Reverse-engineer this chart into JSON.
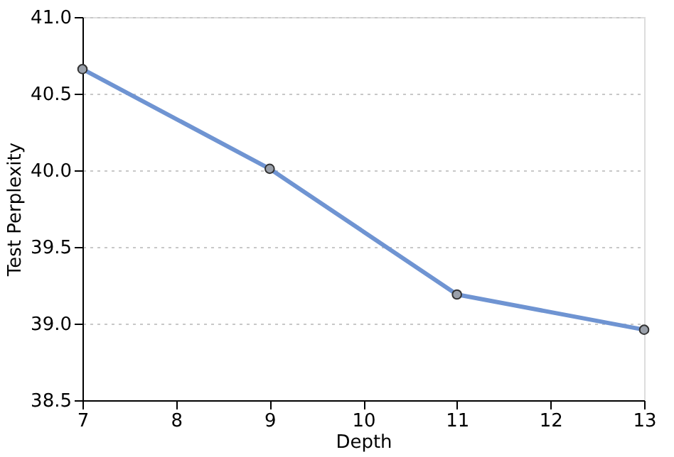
{
  "chart_data": {
    "type": "line",
    "xlabel": "Depth",
    "ylabel": "Test Perplexity",
    "x": [
      7,
      9,
      11,
      13
    ],
    "series": [
      {
        "color": "#6f94d2",
        "values": [
          40.66,
          40.01,
          39.19,
          38.96
        ]
      }
    ],
    "xlim": [
      7,
      13
    ],
    "xticks": [
      7,
      8,
      9,
      10,
      11,
      12,
      13
    ],
    "ylim": [
      38.5,
      41.0
    ],
    "yticks": [
      {
        "value": 38.5,
        "label": "38.5"
      },
      {
        "value": 39.0,
        "label": "39.0"
      },
      {
        "value": 39.5,
        "label": "39.5"
      },
      {
        "value": 40.0,
        "label": "40.0"
      },
      {
        "value": 40.5,
        "label": "40.5"
      },
      {
        "value": 41.0,
        "label": "41.0"
      }
    ],
    "grid": "y",
    "marker": "circle",
    "line_style": "solid"
  }
}
